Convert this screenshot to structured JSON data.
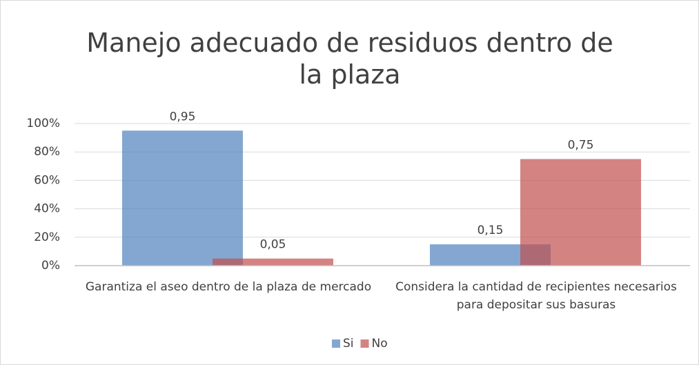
{
  "chart_data": {
    "type": "bar",
    "title": "Manejo adecuado de residuos dentro de la plaza",
    "categories": [
      "Garantiza el aseo dentro de la plaza de mercado",
      "Considera la cantidad de recipientes necesarios para depositar sus basuras"
    ],
    "series": [
      {
        "name": "Si",
        "color": "#4f81bd",
        "values": [
          0.95,
          0.15
        ],
        "value_labels": [
          "0,95",
          "0,15"
        ]
      },
      {
        "name": "No",
        "color": "#c0504d",
        "values": [
          0.05,
          0.75
        ],
        "value_labels": [
          "0,05",
          "0,75"
        ]
      }
    ],
    "ylim": [
      0,
      1
    ],
    "yticks": [
      {
        "value": 0,
        "label": "0%"
      },
      {
        "value": 0.2,
        "label": "20%"
      },
      {
        "value": 0.4,
        "label": "40%"
      },
      {
        "value": 0.6,
        "label": "60%"
      },
      {
        "value": 0.8,
        "label": "80%"
      },
      {
        "value": 1,
        "label": "100%"
      }
    ],
    "grid": true,
    "legend": "bottom"
  }
}
